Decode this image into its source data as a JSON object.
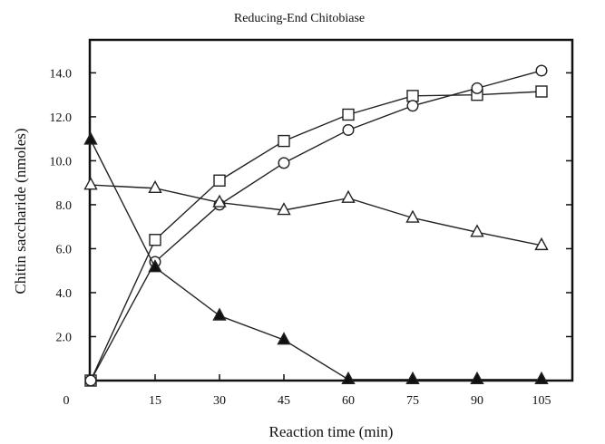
{
  "chart_data": {
    "type": "line",
    "title": "Reducing-End Chitobiase",
    "xlabel": "Reaction time (min)",
    "ylabel": "Chitin saccharide (nmoles)",
    "xlim": [
      0,
      105
    ],
    "ylim": [
      0,
      15.5
    ],
    "x_ticks": [
      0,
      15,
      30,
      45,
      60,
      75,
      90,
      105
    ],
    "x_tick_labels": [
      "0",
      "15",
      "30",
      "45",
      "60",
      "75",
      "90",
      "105"
    ],
    "y_ticks": [
      2,
      4,
      6,
      8,
      10,
      12,
      14
    ],
    "y_tick_labels": [
      "2.0",
      "4.0",
      "6.0",
      "8.0",
      "10.0",
      "12.0",
      "14.0"
    ],
    "x_zero_label": "0",
    "grid": false,
    "x": [
      0,
      15,
      30,
      45,
      60,
      75,
      90,
      105
    ],
    "series": [
      {
        "marker": "open-square",
        "values": [
          0,
          6.4,
          9.1,
          10.9,
          12.1,
          12.95,
          13.0,
          13.15
        ]
      },
      {
        "marker": "open-circle",
        "values": [
          0,
          5.4,
          8.0,
          9.9,
          11.4,
          12.5,
          13.3,
          14.1
        ]
      },
      {
        "marker": "open-triangle",
        "values": [
          8.9,
          8.75,
          8.1,
          7.75,
          8.3,
          7.4,
          6.75,
          6.15
        ]
      },
      {
        "marker": "filled-triangle",
        "values": [
          10.95,
          5.15,
          2.95,
          1.85,
          0.05,
          0.05,
          0.05,
          0.05
        ]
      }
    ],
    "colors": {
      "line": "#222222",
      "marker_fill_open": "#ffffff",
      "marker_fill_filled": "#111111"
    }
  }
}
